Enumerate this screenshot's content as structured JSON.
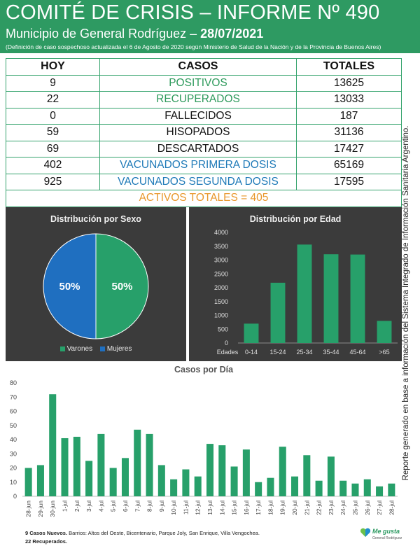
{
  "header": {
    "title": "COMITÉ DE CRISIS – INFORME Nº 490",
    "subtitle": "Municipio de General Rodríguez –",
    "date": "28/07/2021",
    "note": "(Definición de caso sospechoso actualizada el 6 de Agosto de 2020 según Ministerio de Salud de la Nación y de la Provincia de Buenos Aires)"
  },
  "table": {
    "headers": [
      "HOY",
      "CASOS",
      "TOTALES"
    ],
    "rows": [
      {
        "hoy": "9",
        "casos": "POSITIVOS",
        "totales": "13625"
      },
      {
        "hoy": "22",
        "casos": "RECUPERADOS",
        "totales": "13033"
      },
      {
        "hoy": "0",
        "casos": "FALLECIDOS",
        "totales": "187"
      },
      {
        "hoy": "59",
        "casos": "HISOPADOS",
        "totales": "31136"
      },
      {
        "hoy": "69",
        "casos": "DESCARTADOS",
        "totales": "17427"
      },
      {
        "hoy": "402",
        "casos": "VACUNADOS PRIMERA DOSIS",
        "totales": "65169"
      },
      {
        "hoy": "925",
        "casos": "VACUNADOS SEGUNDA DOSIS",
        "totales": "17595"
      }
    ],
    "activos": "ACTIVOS TOTALES = 405"
  },
  "side_text": "Reporte generado en base a información del Sistema Integrado de Información Sanitaria Argentino.",
  "colors": {
    "header_green": "#2e9a62",
    "bar_green": "#27a06a",
    "pie_green": "#27a06a",
    "pie_blue": "#1f6fc0",
    "panel_dark": "#3b3b3b"
  },
  "chart_data": [
    {
      "type": "pie",
      "title": "Distribución por Sexo",
      "slices": [
        {
          "name": "Varones",
          "value": 50,
          "label": "50%",
          "color": "#27a06a"
        },
        {
          "name": "Mujeres",
          "value": 50,
          "label": "50%",
          "color": "#1f6fc0"
        }
      ],
      "legend": "bottom"
    },
    {
      "type": "bar",
      "title": "Distribución por Edad",
      "xlabel": "Edades",
      "categories": [
        "0-14",
        "15-24",
        "25-34",
        "35-44",
        "45-64",
        ">65"
      ],
      "values": [
        700,
        2180,
        3560,
        3210,
        3200,
        800
      ],
      "ylim": [
        0,
        4000
      ],
      "yticks": [
        "0",
        "500",
        "1000",
        "1500",
        "2000",
        "2500",
        "3000",
        "3500",
        "4000"
      ],
      "grid": false
    },
    {
      "type": "bar",
      "title": "Casos por Día",
      "categories": [
        "28-jun",
        "29-jun",
        "30-jun",
        "1-jul",
        "2-jul",
        "3-jul",
        "4-jul",
        "5-jul",
        "6-jul",
        "7-jul",
        "8-jul",
        "9-jul",
        "10-jul",
        "11-jul",
        "12-jul",
        "13-jul",
        "14-jul",
        "15-jul",
        "16-jul",
        "17-jul",
        "18-jul",
        "19-jul",
        "20-jul",
        "21-jul",
        "22-jul",
        "23-jul",
        "24-jul",
        "25-jul",
        "26-jul",
        "27-jul",
        "28-jul"
      ],
      "values": [
        20,
        22,
        72,
        41,
        42,
        25,
        44,
        20,
        27,
        47,
        44,
        22,
        12,
        19,
        14,
        37,
        36,
        21,
        33,
        10,
        13,
        35,
        14,
        29,
        11,
        28,
        11,
        9,
        12,
        7,
        9
      ],
      "ylim": [
        0,
        80
      ],
      "yticks": [
        "0",
        "10",
        "20",
        "30",
        "40",
        "50",
        "60",
        "70",
        "80"
      ],
      "grid": false
    }
  ],
  "footer": {
    "line1_bold": "9 Casos Nuevos.",
    "line1_rest": " Barrios: Altos del Oeste, Bicentenario, Parque Joly, San Enrique, Villa Vengochea.",
    "line2_bold": "22 Recuperados.",
    "logo_text": "Me gusta",
    "logo_sub": "General Rodríguez"
  }
}
